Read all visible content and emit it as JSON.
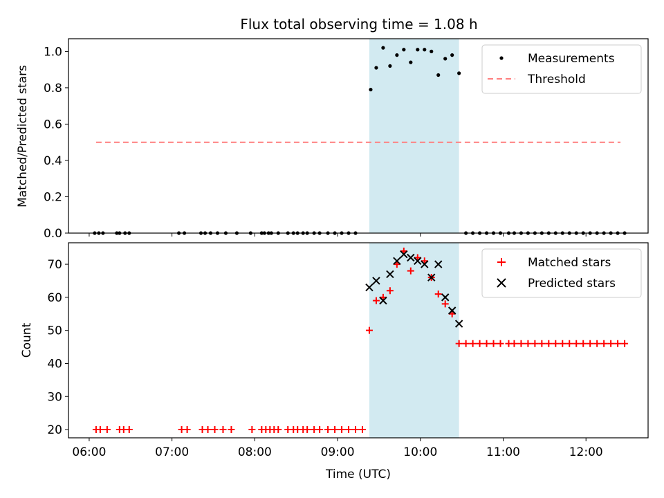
{
  "title": "Flux total observing time = 1.08 h",
  "colors": {
    "measurement": "#000000",
    "threshold": "#ff7f7f",
    "matched": "#ff0000",
    "predicted": "#000000",
    "highlight": "#add8e6"
  },
  "chart_data": [
    {
      "type": "scatter",
      "ylabel": "Matched/Predicted stars",
      "xlabel": "",
      "xlim": [
        "05:45",
        "12:45"
      ],
      "ylim": [
        0,
        1.07
      ],
      "x_ticks": [
        "06:00",
        "07:00",
        "08:00",
        "09:00",
        "10:00",
        "11:00",
        "12:00"
      ],
      "y_ticks": [
        "0.0",
        "0.2",
        "0.4",
        "0.6",
        "0.8",
        "1.0"
      ],
      "highlight_span": [
        "09:23",
        "10:28"
      ],
      "legend": {
        "position": "upper right",
        "entries": [
          "Measurements",
          "Threshold"
        ]
      },
      "series": [
        {
          "name": "Measurements",
          "marker": "dot",
          "x": [
            "06:04",
            "06:07",
            "06:10",
            "06:20",
            "06:22",
            "06:26",
            "06:29",
            "07:05",
            "07:09",
            "07:21",
            "07:24",
            "07:28",
            "07:33",
            "07:39",
            "07:47",
            "07:57",
            "08:05",
            "08:07",
            "08:10",
            "08:12",
            "08:17",
            "08:24",
            "08:28",
            "08:31",
            "08:35",
            "08:38",
            "08:43",
            "08:47",
            "08:53",
            "08:58",
            "09:03",
            "09:08",
            "09:13",
            "09:20",
            "09:24",
            "09:28",
            "09:33",
            "09:38",
            "09:43",
            "09:48",
            "09:53",
            "09:58",
            "10:03",
            "10:08",
            "10:13",
            "10:18",
            "10:23",
            "10:28",
            "10:33",
            "10:38",
            "10:43",
            "10:48",
            "10:53",
            "10:58",
            "11:04",
            "11:08",
            "11:13",
            "11:18",
            "11:23",
            "11:28",
            "11:33",
            "11:38",
            "11:43",
            "11:48",
            "11:53",
            "11:58",
            "12:03",
            "12:08",
            "12:13",
            "12:18",
            "12:23",
            "12:28"
          ],
          "y": [
            0,
            0,
            0,
            0,
            0,
            0,
            0,
            0,
            0,
            0,
            0,
            0,
            0,
            0,
            0,
            0,
            0,
            0,
            0,
            0,
            0,
            0,
            0,
            0,
            0,
            0,
            0,
            0,
            0,
            0,
            0,
            0,
            0,
            null,
            0.79,
            0.91,
            1.02,
            0.92,
            0.98,
            1.01,
            0.94,
            1.01,
            1.01,
            1.0,
            0.87,
            0.96,
            0.98,
            0.88,
            0,
            0,
            0,
            0,
            0,
            0,
            0,
            0,
            0,
            0,
            0,
            0,
            0,
            0,
            0,
            0,
            0,
            0,
            0,
            0,
            0,
            0,
            0,
            0
          ]
        },
        {
          "name": "Threshold",
          "marker": "dashed-line",
          "x": [
            "06:05",
            "12:25"
          ],
          "y": [
            0.5,
            0.5
          ]
        }
      ]
    },
    {
      "type": "scatter",
      "ylabel": "Count",
      "xlabel": "Time (UTC)",
      "xlim": [
        "05:45",
        "12:45"
      ],
      "ylim": [
        17.5,
        76.5
      ],
      "x_ticks": [
        "06:00",
        "07:00",
        "08:00",
        "09:00",
        "10:00",
        "11:00",
        "12:00"
      ],
      "y_ticks": [
        "20",
        "30",
        "40",
        "50",
        "60",
        "70"
      ],
      "highlight_span": [
        "09:23",
        "10:28"
      ],
      "legend": {
        "position": "upper right",
        "entries": [
          "Matched stars",
          "Predicted stars"
        ]
      },
      "series": [
        {
          "name": "Matched stars",
          "marker": "plus",
          "x": [
            "06:05",
            "06:08",
            "06:13",
            "06:22",
            "06:25",
            "06:29",
            "07:07",
            "07:11",
            "07:22",
            "07:26",
            "07:31",
            "07:37",
            "07:43",
            "07:58",
            "08:05",
            "08:08",
            "08:11",
            "08:14",
            "08:17",
            "08:24",
            "08:28",
            "08:31",
            "08:35",
            "08:38",
            "08:43",
            "08:47",
            "08:53",
            "08:58",
            "09:03",
            "09:08",
            "09:13",
            "09:18",
            "09:23",
            "09:28",
            "09:33",
            "09:38",
            "09:43",
            "09:48",
            "09:53",
            "09:58",
            "10:03",
            "10:08",
            "10:13",
            "10:18",
            "10:23",
            "10:28",
            "10:33",
            "10:38",
            "10:43",
            "10:48",
            "10:53",
            "10:58",
            "11:04",
            "11:08",
            "11:13",
            "11:18",
            "11:23",
            "11:28",
            "11:33",
            "11:38",
            "11:43",
            "11:48",
            "11:53",
            "11:58",
            "12:03",
            "12:08",
            "12:13",
            "12:18",
            "12:23",
            "12:28"
          ],
          "y": [
            20,
            20,
            20,
            20,
            20,
            20,
            20,
            20,
            20,
            20,
            20,
            20,
            20,
            20,
            20,
            20,
            20,
            20,
            20,
            20,
            20,
            20,
            20,
            20,
            20,
            20,
            20,
            20,
            20,
            20,
            20,
            20,
            50,
            59,
            60,
            62,
            70,
            74,
            68,
            72,
            71,
            66,
            61,
            58,
            55,
            46,
            46,
            46,
            46,
            46,
            46,
            46,
            46,
            46,
            46,
            46,
            46,
            46,
            46,
            46,
            46,
            46,
            46,
            46,
            46,
            46,
            46,
            46,
            46,
            46
          ]
        },
        {
          "name": "Predicted stars",
          "marker": "x",
          "x": [
            "09:23",
            "09:28",
            "09:33",
            "09:38",
            "09:43",
            "09:48",
            "09:53",
            "09:58",
            "10:03",
            "10:08",
            "10:13",
            "10:18",
            "10:23",
            "10:28"
          ],
          "y": [
            63,
            65,
            59,
            67,
            71,
            73,
            72,
            71,
            70,
            66,
            70,
            60,
            56,
            52
          ]
        }
      ]
    }
  ]
}
